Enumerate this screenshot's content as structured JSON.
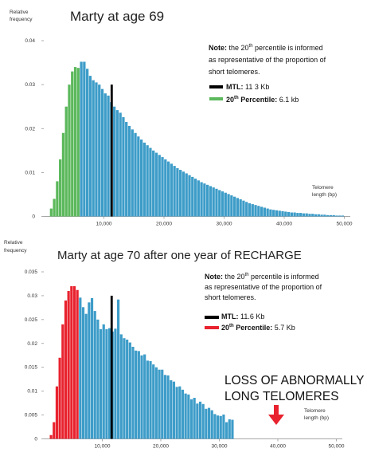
{
  "chart_data": [
    {
      "type": "bar",
      "title": "Marty at age 69",
      "ylabel": "Relative frequency",
      "xlabel": "Telomere length (bp)",
      "xlim": [
        0,
        50000
      ],
      "ylim": [
        0,
        0.04
      ],
      "xticks": [
        10000,
        20000,
        30000,
        40000,
        50000
      ],
      "xtick_labels": [
        "10,000",
        "20,000",
        "30,000",
        "40,000",
        "50,000"
      ],
      "yticks": [
        0,
        0.01,
        0.02,
        0.03,
        0.04
      ],
      "ytick_labels": [
        "0",
        "0.01",
        "0.02",
        "0.03",
        "0.04"
      ],
      "bin_start": 1000,
      "bin_width": 500,
      "percentile_bins": 10,
      "values": [
        0.0018,
        0.004,
        0.008,
        0.013,
        0.019,
        0.025,
        0.03,
        0.033,
        0.034,
        0.0338,
        0.0352,
        0.0352,
        0.0336,
        0.032,
        0.031,
        0.0305,
        0.03,
        0.029,
        0.028,
        0.0275,
        0.026,
        0.025,
        0.0242,
        0.0236,
        0.0226,
        0.0215,
        0.0206,
        0.0198,
        0.019,
        0.0182,
        0.0175,
        0.0168,
        0.0162,
        0.0156,
        0.015,
        0.0145,
        0.014,
        0.0135,
        0.013,
        0.0125,
        0.012,
        0.0115,
        0.011,
        0.0106,
        0.0102,
        0.0098,
        0.0094,
        0.009,
        0.0086,
        0.0082,
        0.0078,
        0.0075,
        0.0072,
        0.0069,
        0.0066,
        0.0063,
        0.006,
        0.0057,
        0.0054,
        0.0051,
        0.0048,
        0.0045,
        0.0042,
        0.0039,
        0.0036,
        0.0033,
        0.003,
        0.0028,
        0.0026,
        0.0024,
        0.0022,
        0.002,
        0.0018,
        0.0016,
        0.0015,
        0.0014,
        0.0013,
        0.0012,
        0.0011,
        0.001,
        0.0009,
        0.0009,
        0.0008,
        0.0008,
        0.0007,
        0.0007,
        0.0006,
        0.0006,
        0.0005,
        0.0005,
        0.0004,
        0.0004,
        0.0003,
        0.0003,
        0.0003,
        0.0002,
        0.0002,
        0.0002
      ],
      "mtl_line": {
        "x": 11300,
        "y": 0.03
      },
      "legend": [
        {
          "label": "MTL",
          "value": "11 3 Kb",
          "color": "#000000"
        },
        {
          "label": "20th Percentile",
          "value": "6.1 kb",
          "color": "#5cb85c"
        }
      ],
      "note": {
        "prefix": "Note:",
        "lines": [
          "the 20th percentile is informed",
          "as representative of the proportion of",
          "short telomeres."
        ]
      },
      "colors": {
        "main": "#3d9cc8",
        "percentile": "#5cb85c",
        "mtl": "#000000"
      }
    },
    {
      "type": "bar",
      "title": "Marty at age 70 after one year of RECHARGE",
      "ylabel": "Relative frequency",
      "xlabel": "Telomere length (bp)",
      "xlim": [
        0,
        50000
      ],
      "ylim": [
        0,
        0.035
      ],
      "xticks": [
        10000,
        20000,
        30000,
        40000,
        50000
      ],
      "xtick_labels": [
        "10,000",
        "20,000",
        "30,000",
        "40,000",
        "50,000"
      ],
      "yticks": [
        0,
        0.005,
        0.01,
        0.015,
        0.02,
        0.025,
        0.03,
        0.035
      ],
      "ytick_labels": [
        "0",
        "0.005",
        "0.01",
        "0.015",
        "0.02",
        "0.025",
        "0.03",
        "0.035"
      ],
      "bin_start": 1000,
      "bin_width": 500,
      "percentile_bins": 10,
      "values": [
        0.0008,
        0.0035,
        0.011,
        0.017,
        0.024,
        0.029,
        0.031,
        0.032,
        0.032,
        0.0312,
        0.0296,
        0.0276,
        0.0262,
        0.0286,
        0.0295,
        0.0268,
        0.025,
        0.023,
        0.024,
        0.023,
        0.0232,
        0.0225,
        0.0231,
        0.0292,
        0.0219,
        0.0211,
        0.0208,
        0.0202,
        0.0193,
        0.0185,
        0.0184,
        0.0175,
        0.0177,
        0.0164,
        0.0163,
        0.0156,
        0.015,
        0.0145,
        0.0145,
        0.0134,
        0.0133,
        0.0123,
        0.012,
        0.0109,
        0.011,
        0.0103,
        0.0095,
        0.0093,
        0.0083,
        0.0086,
        0.0074,
        0.0078,
        0.0073,
        0.0063,
        0.0065,
        0.006,
        0.0052,
        0.0049,
        0.0048,
        0.0051,
        0.0035,
        0.0041,
        0.004
      ],
      "mtl_line": {
        "x": 11600,
        "y": 0.03
      },
      "legend": [
        {
          "label": "MTL",
          "value": "11.6 Kb",
          "color": "#000000"
        },
        {
          "label": "20th Percentile",
          "value": "5.7 Kb",
          "color": "#e8222e"
        }
      ],
      "note": {
        "prefix": "Note:",
        "lines": [
          "the 20th percentile is informed",
          "as representative of the proportion of",
          "short telomeres."
        ]
      },
      "annotation": [
        "LOSS OF ABNORMALLY",
        "LONG TELOMERES"
      ],
      "colors": {
        "main": "#3d9cc8",
        "percentile": "#e8222e",
        "mtl": "#000000",
        "arrow": "#e8222e"
      }
    }
  ]
}
